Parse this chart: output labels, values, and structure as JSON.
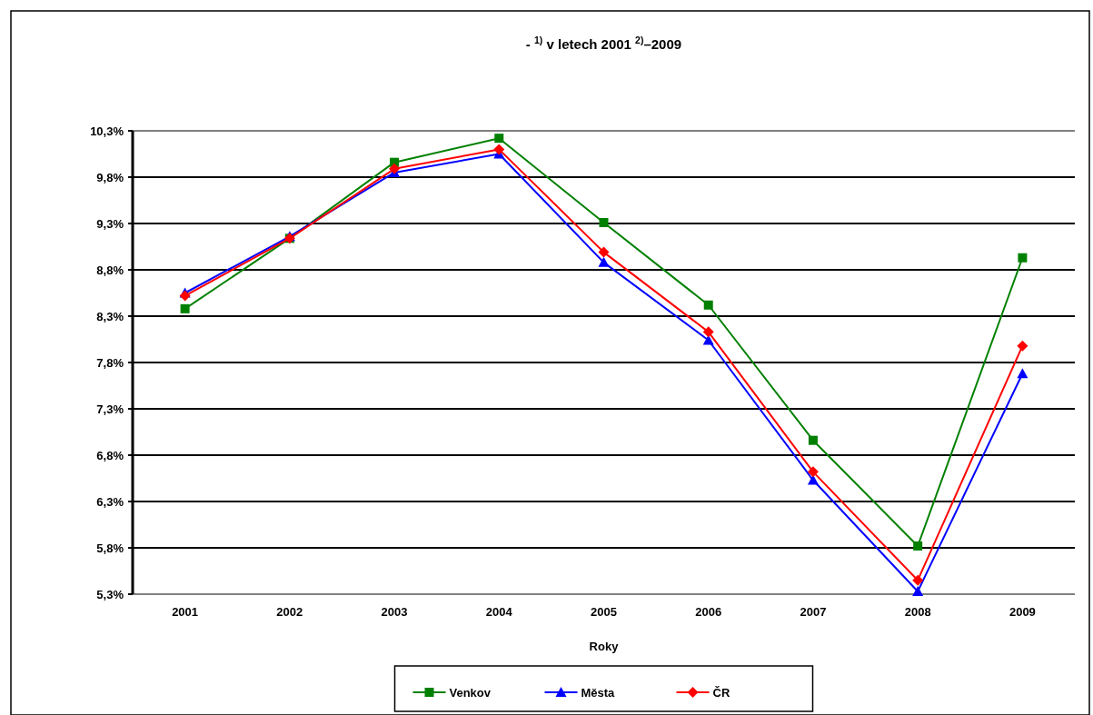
{
  "chart_data": {
    "type": "line",
    "title": "- $^{1)}$ v letech 2001 $^{2)}$–2009",
    "xlabel": "Roky",
    "categories": [
      "2001",
      "2002",
      "2003",
      "2004",
      "2005",
      "2006",
      "2007",
      "2008",
      "2009"
    ],
    "series": [
      {
        "name": "Venkov",
        "color": "#008000",
        "marker": "square",
        "values": [
          8.38,
          9.14,
          9.96,
          10.22,
          9.31,
          8.42,
          6.96,
          5.82,
          8.93
        ]
      },
      {
        "name": "Města",
        "color": "#0000ff",
        "marker": "triangle",
        "values": [
          8.55,
          9.16,
          9.85,
          10.05,
          8.88,
          8.04,
          6.53,
          5.33,
          7.68
        ]
      },
      {
        "name": "ČR",
        "color": "#ff0000",
        "marker": "diamond",
        "values": [
          8.52,
          9.14,
          9.89,
          10.1,
          8.99,
          8.13,
          6.62,
          5.45,
          7.98
        ]
      }
    ],
    "ylim": [
      5.3,
      10.3
    ],
    "yticks": [
      {
        "value": 5.3,
        "label": "5,3%"
      },
      {
        "value": 5.8,
        "label": "5,8%"
      },
      {
        "value": 6.3,
        "label": "6,3%"
      },
      {
        "value": 6.8,
        "label": "6,8%"
      },
      {
        "value": 7.3,
        "label": "7,3%"
      },
      {
        "value": 7.8,
        "label": "7,8%"
      },
      {
        "value": 8.3,
        "label": "8,3%"
      },
      {
        "value": 8.8,
        "label": "8,8%"
      },
      {
        "value": 9.3,
        "label": "9,3%"
      },
      {
        "value": 9.8,
        "label": "9,8%"
      },
      {
        "value": 10.3,
        "label": "10,3%"
      }
    ],
    "grid": "y",
    "legend": "bottom",
    "line_style": "solid"
  }
}
